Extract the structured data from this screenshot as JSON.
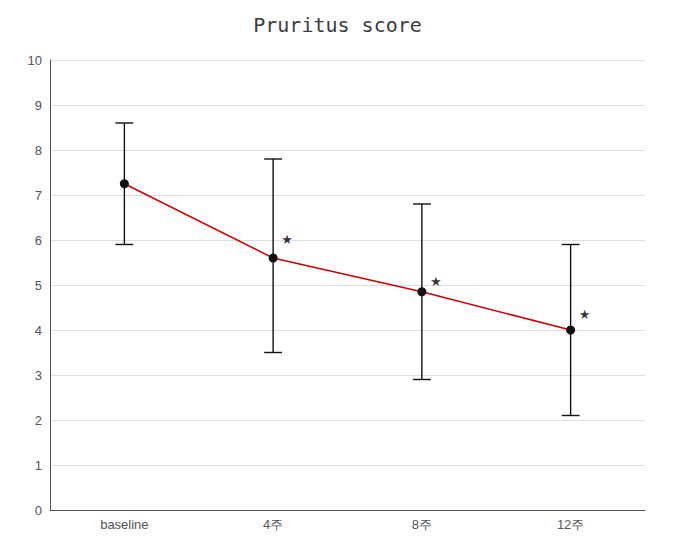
{
  "chart_data": {
    "type": "line",
    "title": "Pruritus score",
    "categories": [
      "baseline",
      "4주",
      "8주",
      "12주"
    ],
    "values": [
      7.25,
      5.6,
      4.85,
      4.0
    ],
    "errors_upper": [
      8.6,
      7.8,
      6.8,
      5.9
    ],
    "errors_lower": [
      5.9,
      3.5,
      2.9,
      2.1
    ],
    "color": "#cc0000",
    "marker": "circle",
    "annotations": [
      {
        "text": "★",
        "x": "4주",
        "y": 6.02
      },
      {
        "text": "★",
        "x": "8주",
        "y": 5.07
      },
      {
        "text": "★",
        "x": "12주",
        "y": 4.35
      }
    ],
    "ylim": [
      0,
      10
    ],
    "yticks": [
      0,
      1,
      2,
      3,
      4,
      5,
      6,
      7,
      8,
      9,
      10
    ],
    "grid": true
  }
}
